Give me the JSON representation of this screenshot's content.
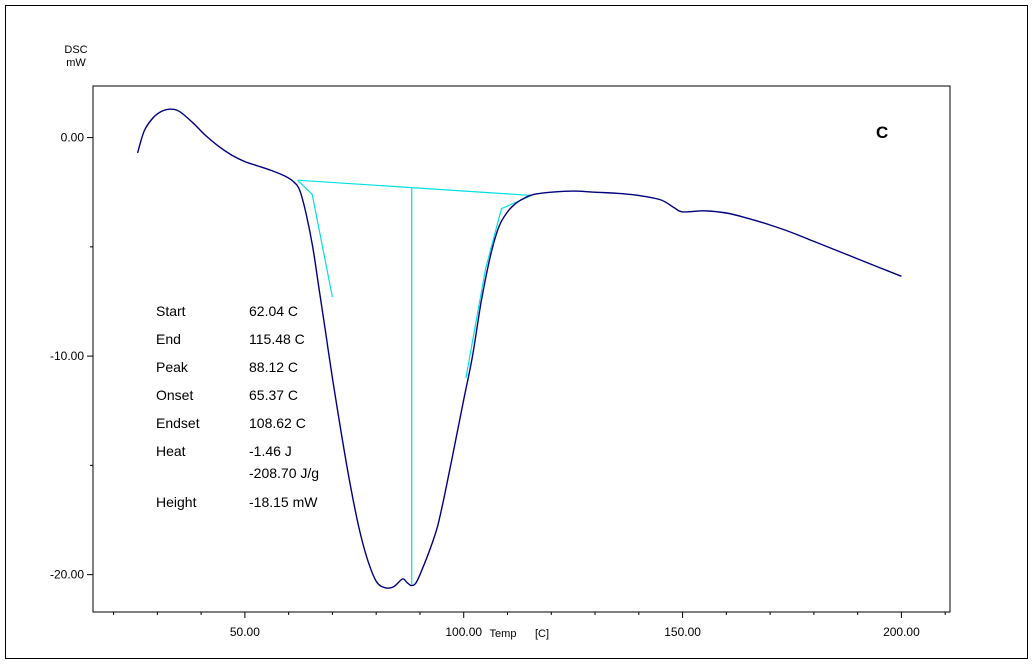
{
  "chart_data": {
    "type": "line",
    "panel_label": "C",
    "ylabel": "DSC",
    "yunit": "mW",
    "xlabel": "Temp",
    "xunit": "[C]",
    "xlim": [
      15.3,
      211.1
    ],
    "ylim": [
      -21.71,
      2.36
    ],
    "xticks": [
      50,
      100,
      150,
      200
    ],
    "xtick_labels": [
      "50.00",
      "100.00",
      "150.00",
      "200.00"
    ],
    "yticks": [
      0,
      -10,
      -20
    ],
    "ytick_labels": [
      "0.00",
      "-10.00",
      "-20.00"
    ],
    "grid": false,
    "series": [
      {
        "color": "#00007f",
        "x": [
          25.5,
          27,
          29,
          31,
          33,
          35,
          38,
          41,
          44,
          47,
          50,
          53,
          56,
          59,
          61,
          62.5,
          64,
          65.5,
          67,
          68.5,
          70,
          72,
          74,
          76,
          78,
          80,
          82,
          84,
          86,
          87,
          88,
          89,
          90,
          92,
          94,
          96,
          98,
          100,
          102,
          104,
          106,
          108,
          110,
          112,
          114,
          116,
          120,
          125,
          130,
          135,
          140,
          145,
          148,
          150,
          155,
          160,
          165,
          170,
          175,
          180,
          185,
          190,
          195,
          200
        ],
        "y": [
          -0.7,
          0.3,
          0.9,
          1.2,
          1.3,
          1.2,
          0.7,
          0.1,
          -0.4,
          -0.8,
          -1.1,
          -1.3,
          -1.5,
          -1.75,
          -2.0,
          -2.4,
          -3.5,
          -5.0,
          -7.0,
          -9.0,
          -11.0,
          -13.5,
          -15.8,
          -17.8,
          -19.3,
          -20.3,
          -20.6,
          -20.55,
          -20.2,
          -20.35,
          -20.5,
          -20.4,
          -20.0,
          -19.0,
          -17.8,
          -16.0,
          -14.0,
          -12.0,
          -10.0,
          -7.5,
          -5.5,
          -4.1,
          -3.4,
          -3.0,
          -2.75,
          -2.6,
          -2.5,
          -2.45,
          -2.5,
          -2.55,
          -2.65,
          -2.85,
          -3.2,
          -3.4,
          -3.35,
          -3.45,
          -3.7,
          -4.0,
          -4.35,
          -4.75,
          -5.15,
          -5.55,
          -5.95,
          -6.35
        ]
      }
    ],
    "annotations": {
      "baseline": {
        "x": [
          62.04,
          115.48
        ],
        "y": [
          -1.95,
          -2.65
        ],
        "color": "#00e0e0"
      },
      "peak_line": {
        "x": 88.12,
        "y": [
          -2.3,
          -20.5
        ]
      },
      "onset_tangent": {
        "x": [
          62.04,
          65.37,
          70.0
        ],
        "y": [
          -1.95,
          -2.6,
          -7.3
        ]
      },
      "endset_tangent": {
        "x": [
          100.5,
          105.0,
          108.62,
          115.48
        ],
        "y": [
          -11.0,
          -6.0,
          -3.25,
          -2.65
        ]
      }
    },
    "results": [
      {
        "label": "Start",
        "value": "62.04 C"
      },
      {
        "label": "End",
        "value": "115.48 C"
      },
      {
        "label": "Peak",
        "value": "88.12 C"
      },
      {
        "label": "Onset",
        "value": "65.37 C"
      },
      {
        "label": "Endset",
        "value": "108.62 C"
      },
      {
        "label": "Heat",
        "value": "-1.46 J",
        "value2": "-208.70 J/g"
      },
      {
        "label": "Height",
        "value": "-18.15 mW"
      }
    ]
  }
}
